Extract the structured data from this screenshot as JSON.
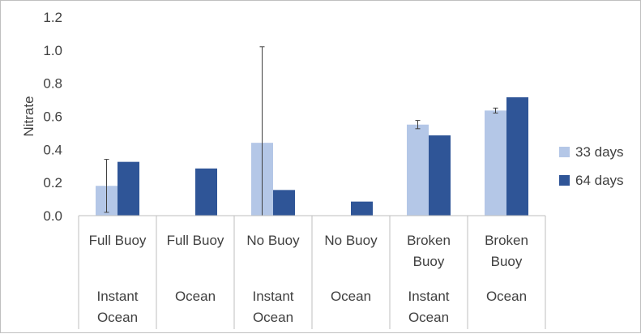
{
  "chart_data": {
    "type": "bar",
    "ylabel": "Nitrate",
    "ylim": [
      0,
      1.2
    ],
    "yticks": [
      "0.0",
      "0.2",
      "0.4",
      "0.6",
      "0.8",
      "1.0",
      "1.2"
    ],
    "categories": [
      {
        "inner": [
          "Full Buoy"
        ],
        "outer": [
          "Instant",
          "Ocean"
        ]
      },
      {
        "inner": [
          "Full Buoy"
        ],
        "outer": [
          "Ocean"
        ]
      },
      {
        "inner": [
          "No Buoy"
        ],
        "outer": [
          "Instant",
          "Ocean"
        ]
      },
      {
        "inner": [
          "No Buoy"
        ],
        "outer": [
          "Ocean"
        ]
      },
      {
        "inner": [
          "Broken",
          "Buoy"
        ],
        "outer": [
          "Instant",
          "Ocean"
        ]
      },
      {
        "inner": [
          "Broken",
          "Buoy"
        ],
        "outer": [
          "Ocean"
        ]
      }
    ],
    "series": [
      {
        "name": "33 days",
        "color": "#b4c7e7",
        "values": [
          0.18,
          null,
          0.44,
          null,
          0.55,
          0.635
        ],
        "errors": [
          0.16,
          null,
          0.58,
          null,
          0.025,
          0.015
        ]
      },
      {
        "name": "64 days",
        "color": "#2f5597",
        "values": [
          0.325,
          0.285,
          0.155,
          0.085,
          0.485,
          0.715
        ],
        "errors": [
          null,
          null,
          null,
          null,
          null,
          null
        ]
      }
    ],
    "legend_position": "right",
    "grid": false
  }
}
